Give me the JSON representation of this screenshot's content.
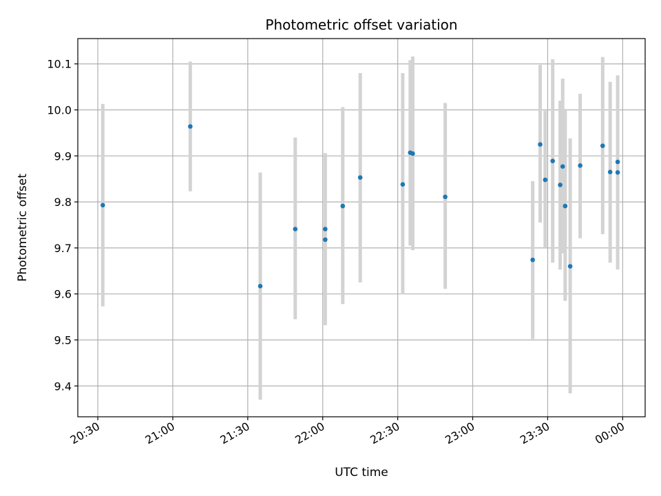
{
  "chart_data": {
    "type": "scatter",
    "title": "Photometric offset variation",
    "xlabel": "UTC time",
    "ylabel": "Photometric offset",
    "x_unit": "HH:MM",
    "xlim": [
      "20:22",
      "00:09"
    ],
    "ylim": [
      9.333,
      10.155
    ],
    "x_ticks": [
      "20:30",
      "21:00",
      "21:30",
      "22:00",
      "22:30",
      "23:00",
      "23:30",
      "00:00"
    ],
    "y_ticks": [
      9.4,
      9.5,
      9.6,
      9.7,
      9.8,
      9.9,
      10.0,
      10.1
    ],
    "y_tick_labels": [
      "9.4",
      "9.5",
      "9.6",
      "9.7",
      "9.8",
      "9.9",
      "10.0",
      "10.1"
    ],
    "grid": true,
    "marker_color": "#1f77b4",
    "errorbar_color": "#d3d3d3",
    "points": [
      {
        "x": "20:32",
        "y": 9.793,
        "ylow": 9.573,
        "yhigh": 10.013
      },
      {
        "x": "21:07",
        "y": 9.964,
        "ylow": 9.823,
        "yhigh": 10.105
      },
      {
        "x": "21:35",
        "y": 9.617,
        "ylow": 9.37,
        "yhigh": 9.864
      },
      {
        "x": "21:49",
        "y": 9.741,
        "ylow": 9.545,
        "yhigh": 9.94
      },
      {
        "x": "22:01",
        "y": 9.741,
        "ylow": 9.741,
        "yhigh": 9.741
      },
      {
        "x": "22:01",
        "y": 9.718,
        "ylow": 9.532,
        "yhigh": 9.906
      },
      {
        "x": "22:08",
        "y": 9.791,
        "ylow": 9.578,
        "yhigh": 10.006
      },
      {
        "x": "22:15",
        "y": 9.853,
        "ylow": 9.625,
        "yhigh": 10.08
      },
      {
        "x": "22:32",
        "y": 9.838,
        "ylow": 9.599,
        "yhigh": 10.08
      },
      {
        "x": "22:35",
        "y": 9.907,
        "ylow": 9.705,
        "yhigh": 10.108
      },
      {
        "x": "22:36",
        "y": 9.905,
        "ylow": 9.695,
        "yhigh": 10.116
      },
      {
        "x": "22:49",
        "y": 9.811,
        "ylow": 9.611,
        "yhigh": 10.015
      },
      {
        "x": "23:24",
        "y": 9.674,
        "ylow": 9.502,
        "yhigh": 9.845
      },
      {
        "x": "23:27",
        "y": 9.925,
        "ylow": 9.755,
        "yhigh": 10.098
      },
      {
        "x": "23:29",
        "y": 9.848,
        "ylow": 9.7,
        "yhigh": 9.998
      },
      {
        "x": "23:32",
        "y": 9.889,
        "ylow": 9.668,
        "yhigh": 10.11
      },
      {
        "x": "23:35",
        "y": 9.837,
        "ylow": 9.653,
        "yhigh": 10.02
      },
      {
        "x": "23:36",
        "y": 9.877,
        "ylow": 9.688,
        "yhigh": 10.068
      },
      {
        "x": "23:37",
        "y": 9.791,
        "ylow": 9.585,
        "yhigh": 10.002
      },
      {
        "x": "23:39",
        "y": 9.66,
        "ylow": 9.384,
        "yhigh": 9.938
      },
      {
        "x": "23:43",
        "y": 9.879,
        "ylow": 9.721,
        "yhigh": 10.035
      },
      {
        "x": "23:52",
        "y": 9.922,
        "ylow": 9.73,
        "yhigh": 10.115
      },
      {
        "x": "23:55",
        "y": 9.865,
        "ylow": 9.668,
        "yhigh": 10.061
      },
      {
        "x": "23:58",
        "y": 9.887,
        "ylow": 9.887,
        "yhigh": 9.887
      },
      {
        "x": "23:58",
        "y": 9.864,
        "ylow": 9.653,
        "yhigh": 10.075
      }
    ]
  }
}
